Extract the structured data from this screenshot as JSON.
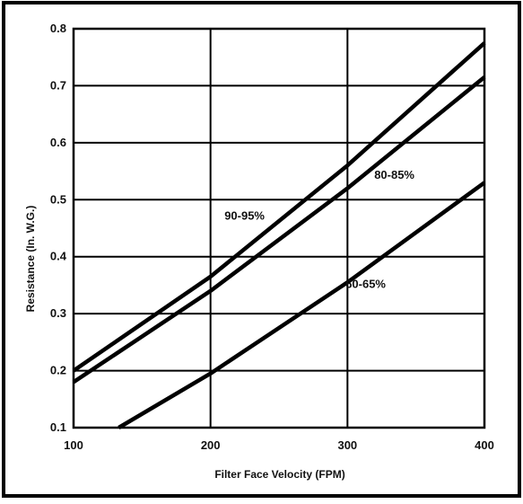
{
  "chart_data": {
    "type": "line",
    "title": "",
    "xlabel": "Filter Face Velocity (FPM)",
    "ylabel": "Resistance (In. W.G.)",
    "xlim": [
      100,
      400
    ],
    "ylim": [
      0.1,
      0.8
    ],
    "x_ticks": [
      "100",
      "200",
      "300",
      "400"
    ],
    "y_ticks": [
      "0.1",
      "0.2",
      "0.3",
      "0.4",
      "0.5",
      "0.6",
      "0.7",
      "0.8"
    ],
    "grid": true,
    "legend": "none",
    "series": [
      {
        "name": "90-95%",
        "x": [
          100,
          200,
          300,
          400
        ],
        "y": [
          0.2,
          0.365,
          0.56,
          0.775
        ]
      },
      {
        "name": "80-85%",
        "x": [
          100,
          200,
          300,
          400
        ],
        "y": [
          0.18,
          0.34,
          0.52,
          0.715
        ]
      },
      {
        "name": "60-65%",
        "x": [
          133,
          200,
          300,
          400
        ],
        "y": [
          0.1,
          0.195,
          0.355,
          0.53
        ]
      }
    ]
  }
}
